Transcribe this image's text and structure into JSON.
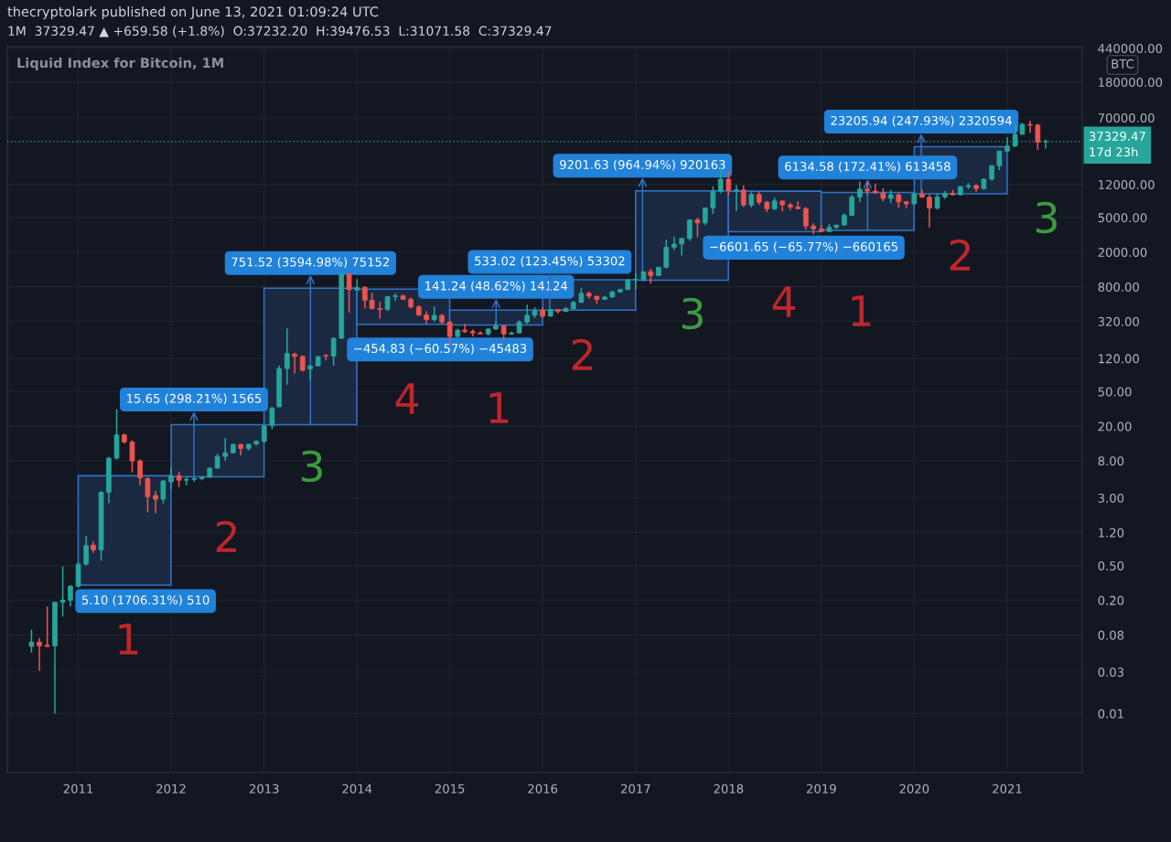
{
  "chart_data": {
    "type": "candlestick",
    "title": "thecryptolark published on June 13, 2021 01:09:24 UTC",
    "subtitle": "1M  37329.47 ▲ +659.58 (+1.8%)  O:37232.20  H:39476.53  L:31071.58  C:37329.47",
    "ylabel": "BTC",
    "log": true,
    "grid": true,
    "xlim": [
      "2010-03-28",
      "2021-10-23"
    ],
    "xticks": [
      "2011",
      "2012",
      "2013",
      "2014",
      "2015",
      "2016",
      "2017",
      "2018",
      "2019",
      "2020",
      "2021"
    ],
    "ylim": [
      0.0021,
      460000
    ],
    "yticks": [
      0.01,
      0.03,
      0.08,
      {
        "value": 0.2,
        "label": "0.20"
      },
      {
        "value": 0.5,
        "label": "0.50"
      },
      {
        "value": 1.2,
        "label": "1.20"
      },
      {
        "value": 3,
        "label": "3.00"
      },
      {
        "value": 8,
        "label": "8.00"
      },
      {
        "value": 20,
        "label": "20.00"
      },
      {
        "value": 50,
        "label": "50.00"
      },
      {
        "value": 120,
        "label": "120.00"
      },
      {
        "value": 320,
        "label": "320.00"
      },
      {
        "value": 800,
        "label": "800.00"
      },
      {
        "value": 2000,
        "label": "2000.00"
      },
      {
        "value": 5000,
        "label": "5000.00"
      },
      {
        "value": 12000,
        "label": "12000.00"
      },
      {
        "value": 70000,
        "label": "70000.00"
      },
      {
        "value": 180000,
        "label": "180000.00"
      },
      {
        "value": 440000,
        "label": "440000.00"
      }
    ],
    "x": [
      "2010-07",
      "2010-08",
      "2010-09",
      "2010-10",
      "2010-11",
      "2010-12",
      "2011-01",
      "2011-02",
      "2011-03",
      "2011-04",
      "2011-05",
      "2011-06",
      "2011-07",
      "2011-08",
      "2011-09",
      "2011-10",
      "2011-11",
      "2011-12",
      "2012-01",
      "2012-02",
      "2012-03",
      "2012-04",
      "2012-05",
      "2012-06",
      "2012-07",
      "2012-08",
      "2012-09",
      "2012-10",
      "2012-11",
      "2012-12",
      "2013-01",
      "2013-02",
      "2013-03",
      "2013-04",
      "2013-05",
      "2013-06",
      "2013-07",
      "2013-08",
      "2013-09",
      "2013-10",
      "2013-11",
      "2013-12",
      "2014-01",
      "2014-02",
      "2014-03",
      "2014-04",
      "2014-05",
      "2014-06",
      "2014-07",
      "2014-08",
      "2014-09",
      "2014-10",
      "2014-11",
      "2014-12",
      "2015-01",
      "2015-02",
      "2015-03",
      "2015-04",
      "2015-05",
      "2015-06",
      "2015-07",
      "2015-08",
      "2015-09",
      "2015-10",
      "2015-11",
      "2015-12",
      "2016-01",
      "2016-02",
      "2016-03",
      "2016-04",
      "2016-05",
      "2016-06",
      "2016-07",
      "2016-08",
      "2016-09",
      "2016-10",
      "2016-11",
      "2016-12",
      "2017-01",
      "2017-02",
      "2017-03",
      "2017-04",
      "2017-05",
      "2017-06",
      "2017-07",
      "2017-08",
      "2017-09",
      "2017-10",
      "2017-11",
      "2017-12",
      "2018-01",
      "2018-02",
      "2018-03",
      "2018-04",
      "2018-05",
      "2018-06",
      "2018-07",
      "2018-08",
      "2018-09",
      "2018-10",
      "2018-11",
      "2018-12",
      "2019-01",
      "2019-02",
      "2019-03",
      "2019-04",
      "2019-05",
      "2019-06",
      "2019-07",
      "2019-08",
      "2019-09",
      "2019-10",
      "2019-11",
      "2019-12",
      "2020-01",
      "2020-02",
      "2020-03",
      "2020-04",
      "2020-05",
      "2020-06",
      "2020-07",
      "2020-08",
      "2020-09",
      "2020-10",
      "2020-11",
      "2020-12",
      "2021-01",
      "2021-02",
      "2021-03",
      "2021-04",
      "2021-05",
      "2021-06"
    ],
    "ohlc": [
      [
        0.059,
        0.092,
        0.05,
        0.066
      ],
      [
        0.066,
        0.074,
        0.031,
        0.06
      ],
      [
        0.061,
        0.17,
        0.058,
        0.059
      ],
      [
        0.06,
        0.19,
        0.01,
        0.19
      ],
      [
        0.19,
        0.49,
        0.13,
        0.2
      ],
      [
        0.2,
        0.3,
        0.17,
        0.29
      ],
      [
        0.29,
        0.55,
        0.28,
        0.52
      ],
      [
        0.52,
        1.1,
        0.5,
        0.85
      ],
      [
        0.86,
        0.95,
        0.7,
        0.76
      ],
      [
        0.76,
        3.6,
        0.57,
        3.48
      ],
      [
        3.5,
        8.9,
        2.6,
        8.6
      ],
      [
        8.6,
        31.4,
        8.3,
        15.9
      ],
      [
        15.9,
        16.5,
        12.7,
        13.2
      ],
      [
        13.2,
        13.8,
        5.9,
        8.0
      ],
      [
        8.0,
        8.3,
        4.2,
        5.1
      ],
      [
        5.0,
        5.2,
        2.05,
        3.1
      ],
      [
        3.2,
        3.6,
        2.0,
        2.9
      ],
      [
        2.9,
        4.8,
        2.6,
        4.7
      ],
      [
        4.6,
        6.8,
        3.8,
        5.4
      ],
      [
        5.4,
        6.0,
        4.0,
        4.8
      ],
      [
        4.8,
        5.3,
        4.2,
        4.9
      ],
      [
        4.9,
        5.2,
        4.6,
        5.0
      ],
      [
        5.0,
        5.3,
        4.8,
        5.2
      ],
      [
        5.2,
        6.7,
        5.1,
        6.6
      ],
      [
        6.6,
        9.7,
        6.5,
        9.0
      ],
      [
        9.0,
        14.6,
        8.0,
        9.9
      ],
      [
        9.9,
        12.6,
        9.8,
        12.3
      ],
      [
        12.3,
        12.6,
        9.2,
        11.1
      ],
      [
        11.1,
        12.6,
        10.5,
        12.4
      ],
      [
        12.5,
        13.8,
        12.0,
        13.4
      ],
      [
        13.4,
        20.4,
        12.9,
        20.2
      ],
      [
        20.3,
        33.5,
        18.4,
        32.2
      ],
      [
        33.5,
        99,
        33,
        92
      ],
      [
        92,
        267,
        60,
        137
      ],
      [
        135,
        140,
        81,
        127
      ],
      [
        127,
        130,
        85,
        88
      ],
      [
        91,
        100,
        69,
        99
      ],
      [
        99,
        128,
        98,
        126
      ],
      [
        130,
        135,
        115,
        128
      ],
      [
        128,
        210,
        99,
        205
      ],
      [
        205,
        1150,
        200,
        1133
      ],
      [
        1133,
        1150,
        405,
        740
      ],
      [
        735,
        980,
        720,
        785
      ],
      [
        790,
        810,
        450,
        560
      ],
      [
        560,
        680,
        440,
        450
      ],
      [
        450,
        540,
        344,
        440
      ],
      [
        440,
        630,
        420,
        615
      ],
      [
        615,
        670,
        550,
        630
      ],
      [
        630,
        650,
        565,
        575
      ],
      [
        575,
        600,
        450,
        470
      ],
      [
        470,
        490,
        370,
        380
      ],
      [
        380,
        420,
        300,
        335
      ],
      [
        335,
        475,
        320,
        375
      ],
      [
        375,
        390,
        300,
        315
      ],
      [
        315,
        320,
        170,
        215
      ],
      [
        215,
        265,
        210,
        254
      ],
      [
        254,
        300,
        235,
        244
      ],
      [
        245,
        260,
        215,
        236
      ],
      [
        236,
        247,
        227,
        230
      ],
      [
        230,
        268,
        220,
        262
      ],
      [
        262,
        318,
        255,
        284
      ],
      [
        284,
        285,
        196,
        230
      ],
      [
        230,
        245,
        225,
        236
      ],
      [
        236,
        330,
        235,
        315
      ],
      [
        315,
        500,
        300,
        377
      ],
      [
        377,
        465,
        350,
        430
      ],
      [
        430,
        465,
        350,
        368
      ],
      [
        368,
        448,
        365,
        437
      ],
      [
        437,
        440,
        394,
        416
      ],
      [
        416,
        467,
        414,
        448
      ],
      [
        448,
        550,
        438,
        531
      ],
      [
        531,
        780,
        520,
        673
      ],
      [
        673,
        704,
        585,
        624
      ],
      [
        624,
        626,
        510,
        575
      ],
      [
        575,
        630,
        570,
        609
      ],
      [
        609,
        720,
        605,
        700
      ],
      [
        700,
        753,
        680,
        745
      ],
      [
        745,
        975,
        740,
        964
      ],
      [
        964,
        1150,
        750,
        970
      ],
      [
        970,
        1200,
        920,
        1190
      ],
      [
        1190,
        1290,
        870,
        1080
      ],
      [
        1080,
        1350,
        1060,
        1340
      ],
      [
        1340,
        2780,
        1300,
        2280
      ],
      [
        2280,
        2990,
        2100,
        2480
      ],
      [
        2480,
        2900,
        1830,
        2875
      ],
      [
        2870,
        4750,
        2700,
        4700
      ],
      [
        4700,
        4980,
        2980,
        4340
      ],
      [
        4340,
        6500,
        4100,
        6450
      ],
      [
        6450,
        11400,
        5500,
        10000
      ],
      [
        10000,
        19500,
        9500,
        13800
      ],
      [
        13800,
        17000,
        9000,
        10200
      ],
      [
        10200,
        11800,
        5900,
        10400
      ],
      [
        10400,
        11700,
        6600,
        6970
      ],
      [
        6970,
        9750,
        6500,
        9200
      ],
      [
        9200,
        10000,
        7000,
        7500
      ],
      [
        7500,
        7750,
        5800,
        6300
      ],
      [
        6300,
        8500,
        6100,
        7750
      ],
      [
        7750,
        7800,
        5900,
        7000
      ],
      [
        7000,
        7400,
        6100,
        6620
      ],
      [
        6620,
        7700,
        6200,
        6330
      ],
      [
        6330,
        6600,
        3600,
        4000
      ],
      [
        4000,
        4300,
        3200,
        3700
      ],
      [
        3700,
        4100,
        3400,
        3450
      ],
      [
        3450,
        4200,
        3400,
        3850
      ],
      [
        3850,
        4100,
        3700,
        4100
      ],
      [
        4100,
        5600,
        4050,
        5300
      ],
      [
        5300,
        9100,
        5300,
        8590
      ],
      [
        8590,
        13000,
        7500,
        10600
      ],
      [
        10600,
        13000,
        9100,
        10100
      ],
      [
        10080,
        12300,
        9400,
        9600
      ],
      [
        9600,
        10900,
        7700,
        8300
      ],
      [
        8300,
        10400,
        7300,
        9150
      ],
      [
        9150,
        9500,
        6500,
        7570
      ],
      [
        7570,
        7750,
        6400,
        7190
      ],
      [
        7190,
        9600,
        6900,
        9350
      ],
      [
        9350,
        10500,
        8450,
        8550
      ],
      [
        8550,
        9200,
        3850,
        6420
      ],
      [
        6420,
        9450,
        6150,
        8650
      ],
      [
        8650,
        10100,
        8150,
        9460
      ],
      [
        9460,
        10400,
        8900,
        9140
      ],
      [
        9140,
        11400,
        8900,
        11330
      ],
      [
        11330,
        12450,
        10600,
        11660
      ],
      [
        11660,
        12050,
        9900,
        10780
      ],
      [
        10780,
        14100,
        10400,
        13800
      ],
      [
        13800,
        19900,
        13200,
        19700
      ],
      [
        19700,
        29300,
        17600,
        29000
      ],
      [
        29000,
        41900,
        28100,
        33100
      ],
      [
        33100,
        58300,
        32300,
        45200
      ],
      [
        45200,
        61700,
        45000,
        58800
      ],
      [
        58800,
        64800,
        47000,
        57700
      ],
      [
        57700,
        59600,
        30000,
        36669.89
      ],
      [
        37232.2,
        39476.53,
        31071.58,
        37329.47
      ]
    ],
    "colors": [
      "#26a69a",
      "#ef5350",
      "#ef5350",
      "#26a69a",
      "#26a69a",
      "#26a69a",
      "#26a69a",
      "#26a69a",
      "#ef5350",
      "#26a69a",
      "#26a69a",
      "#26a69a",
      "#ef5350",
      "#ef5350",
      "#ef5350",
      "#ef5350",
      "#ef5350",
      "#26a69a",
      "#26a69a",
      "#ef5350",
      "#26a69a",
      "#26a69a",
      "#26a69a",
      "#26a69a",
      "#26a69a",
      "#26a69a",
      "#26a69a",
      "#ef5350",
      "#26a69a",
      "#26a69a",
      "#26a69a",
      "#26a69a",
      "#26a69a",
      "#26a69a",
      "#ef5350",
      "#ef5350",
      "#26a69a",
      "#26a69a",
      "#ef5350",
      "#26a69a",
      "#26a69a",
      "#ef5350",
      "#26a69a",
      "#ef5350",
      "#ef5350",
      "#ef5350",
      "#26a69a",
      "#26a69a",
      "#ef5350",
      "#ef5350",
      "#ef5350",
      "#ef5350",
      "#26a69a",
      "#ef5350",
      "#ef5350",
      "#26a69a",
      "#ef5350",
      "#ef5350",
      "#ef5350",
      "#26a69a",
      "#26a69a",
      "#ef5350",
      "#26a69a",
      "#26a69a",
      "#26a69a",
      "#26a69a",
      "#ef5350",
      "#26a69a",
      "#ef5350",
      "#26a69a",
      "#26a69a",
      "#26a69a",
      "#ef5350",
      "#ef5350",
      "#26a69a",
      "#26a69a",
      "#26a69a",
      "#26a69a",
      "#26a69a",
      "#26a69a",
      "#ef5350",
      "#26a69a",
      "#26a69a",
      "#26a69a",
      "#26a69a",
      "#26a69a",
      "#ef5350",
      "#26a69a",
      "#26a69a",
      "#26a69a",
      "#ef5350",
      "#26a69a",
      "#ef5350",
      "#26a69a",
      "#ef5350",
      "#ef5350",
      "#26a69a",
      "#ef5350",
      "#ef5350",
      "#ef5350",
      "#ef5350",
      "#ef5350",
      "#ef5350",
      "#26a69a",
      "#26a69a",
      "#26a69a",
      "#26a69a",
      "#26a69a",
      "#ef5350",
      "#ef5350",
      "#ef5350",
      "#26a69a",
      "#ef5350",
      "#ef5350",
      "#26a69a",
      "#ef5350",
      "#ef5350",
      "#26a69a",
      "#26a69a",
      "#ef5350",
      "#26a69a",
      "#26a69a",
      "#ef5350",
      "#26a69a",
      "#26a69a",
      "#26a69a",
      "#26a69a",
      "#26a69a",
      "#26a69a",
      "#ef5350",
      "#ef5350",
      "#26a69a"
    ],
    "series": [
      {
        "type": "bar",
        "color": "#1b2940",
        "x": [
          "2011-07-02",
          "2012-07-02",
          "2013-07-02",
          "2014-07-02",
          "2015-07-02",
          "2016-07-02",
          "2017-07-02",
          "2018-07-02",
          "2019-07-02",
          "2020-07-02"
        ],
        "base": [
          0.299,
          5.248,
          20.9,
          750.9,
          290.5,
          431.8,
          953.6,
          10040,
          3558,
          9360
        ],
        "values": [
          5.1,
          15.65,
          751.52,
          -454.83,
          141.24,
          533.02,
          9201.63,
          -6601.65,
          6134.58,
          23205.94
        ],
        "value_labels": [
          "5.10 (1706.31%) 510",
          "15.65 (298.21%) 1565",
          "751.52 (3594.98%) 75152",
          "−454.83 (−60.57%) −45483",
          "141.24 (48.62%) 14124",
          "533.02 (123.45%) 53302",
          "9201.63 (964.94%) 920163",
          "−6601.65 (−65.77%) −660165",
          "6134.58 (172.41%) 613458",
          "23205.94 (247.93%) 2320594"
        ]
      }
    ],
    "ref_lines": [
      {
        "axis": "y",
        "value": 37329.47,
        "label": "37329.47\n17d 23h",
        "color": "#26a69a",
        "line_style": "dotted"
      }
    ],
    "annotations": [
      "Liquid Index for Bitcoin, 1M",
      "1",
      "2",
      "3",
      "4",
      "1",
      "2",
      "3",
      "4",
      "1",
      "2",
      "3"
    ]
  }
}
